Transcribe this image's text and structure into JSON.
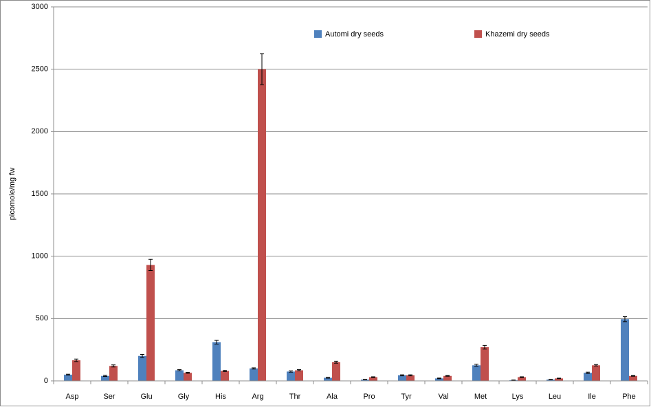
{
  "chart_data": {
    "type": "bar",
    "y_label": "picomole/mg fw",
    "categories": [
      "Asp",
      "Ser",
      "Glu",
      "Gly",
      "His",
      "Arg",
      "Thr",
      "Ala",
      "Pro",
      "Tyr",
      "Val",
      "Met",
      "Lys",
      "Leu",
      "Ile",
      "Phe"
    ],
    "series": [
      {
        "name": "Automi dry seeds",
        "color": "#4f81bd",
        "values": [
          50,
          40,
          200,
          85,
          310,
          100,
          75,
          25,
          10,
          45,
          20,
          125,
          5,
          10,
          65,
          495
        ],
        "errors": [
          4,
          4,
          12,
          5,
          15,
          5,
          5,
          3,
          2,
          4,
          3,
          8,
          2,
          2,
          5,
          20
        ]
      },
      {
        "name": "Khazemi dry seeds",
        "color": "#c0504d",
        "values": [
          165,
          120,
          930,
          65,
          80,
          2500,
          85,
          150,
          30,
          45,
          40,
          270,
          30,
          20,
          125,
          40
        ],
        "errors": [
          10,
          8,
          45,
          4,
          5,
          125,
          5,
          8,
          3,
          4,
          3,
          15,
          3,
          2,
          6,
          3
        ]
      }
    ],
    "ylim": [
      0,
      3000
    ],
    "yticks": [
      0,
      500,
      1000,
      1500,
      2000,
      2500,
      3000
    ],
    "grid": true
  }
}
